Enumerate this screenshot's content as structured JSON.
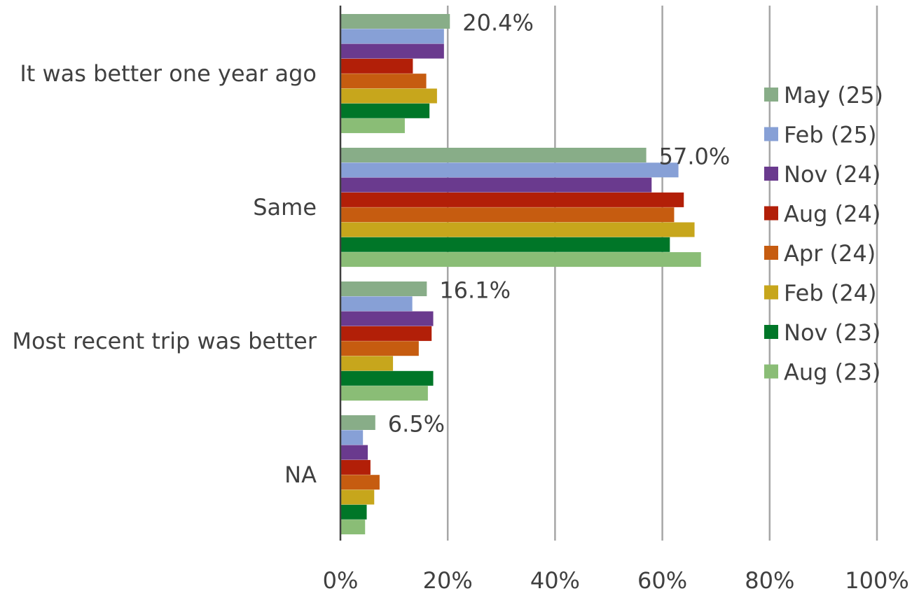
{
  "chart_data": {
    "type": "bar",
    "orientation": "horizontal",
    "categories": [
      "It was better one year ago",
      "Same",
      "Most recent trip was better",
      "NA"
    ],
    "series": [
      {
        "name": "May (25)",
        "color": "#88AD88",
        "values": [
          20.4,
          57.0,
          16.1,
          6.5
        ]
      },
      {
        "name": "Feb (25)",
        "color": "#87A0D6",
        "values": [
          19.3,
          63.0,
          13.4,
          4.2
        ]
      },
      {
        "name": "Nov (24)",
        "color": "#6A3A8E",
        "values": [
          19.3,
          58.0,
          17.3,
          5.1
        ]
      },
      {
        "name": "Aug (24)",
        "color": "#B21F08",
        "values": [
          13.5,
          64.0,
          17.0,
          5.6
        ]
      },
      {
        "name": "Apr (24)",
        "color": "#C65C10",
        "values": [
          16.0,
          62.2,
          14.6,
          7.3
        ]
      },
      {
        "name": "Feb (24)",
        "color": "#C7A61C",
        "values": [
          18.0,
          66.0,
          9.8,
          6.3
        ]
      },
      {
        "name": "Nov (23)",
        "color": "#007628",
        "values": [
          16.6,
          61.4,
          17.3,
          4.9
        ]
      },
      {
        "name": "Aug (23)",
        "color": "#8ABD76",
        "values": [
          12.0,
          67.2,
          16.3,
          4.6
        ]
      }
    ],
    "data_labels": [
      {
        "series": "May (25)",
        "category": "It was better one year ago",
        "text": "20.4%"
      },
      {
        "series": "May (25)",
        "category": "Same",
        "text": "57.0%"
      },
      {
        "series": "May (25)",
        "category": "Most recent trip was better",
        "text": "16.1%"
      },
      {
        "series": "May (25)",
        "category": "NA",
        "text": "6.5%"
      }
    ],
    "xlim": [
      0,
      100
    ],
    "xticks": [
      0,
      20,
      40,
      60,
      80,
      100
    ],
    "xtick_labels": [
      "0%",
      "20%",
      "40%",
      "60%",
      "80%",
      "100%"
    ],
    "title": "",
    "xlabel": "",
    "ylabel": "",
    "grid": "vertical",
    "legend_position": "right"
  }
}
